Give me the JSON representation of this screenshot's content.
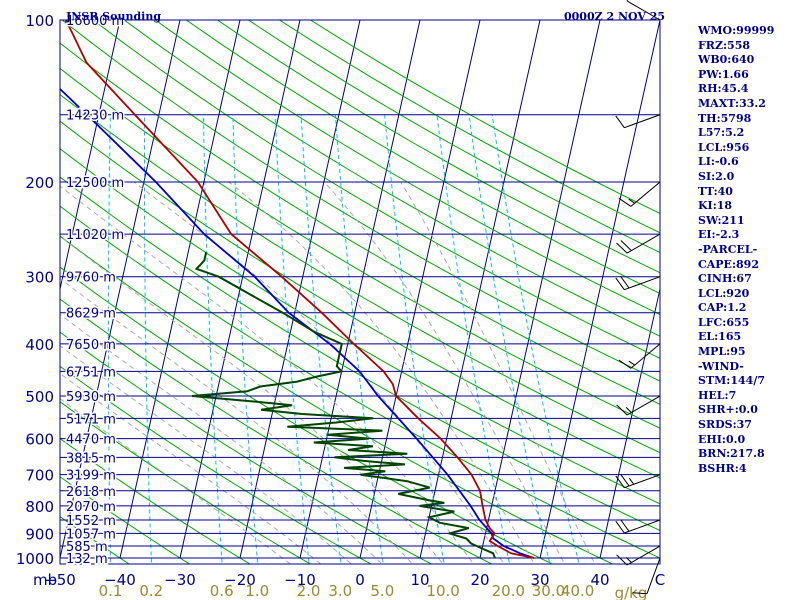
{
  "header": {
    "title": "JNSR Sounding",
    "datetime": "0000Z  2 NOV 25"
  },
  "side_params": [
    "WMO:99999",
    "FRZ:558",
    "WB0:640",
    "PW:1.66",
    "RH:45.4",
    "MAXT:33.2",
    "TH:5798",
    "L57:5.2",
    "LCL:956",
    "LI:-0.6",
    "SI:2.0",
    "TT:40",
    "KI:18",
    "SW:211",
    "EI:-2.3",
    "-PARCEL-",
    "CAPE:892",
    "CINH:67",
    "LCL:920",
    "CAP:1.2",
    "LFC:655",
    "EL:165",
    "MPL:95",
    "-WIND-",
    "STM:144/7",
    "HEL:7",
    "SHR+:0.0",
    "SRDS:37",
    "EHI:0.0",
    "BRN:217.8",
    "BSHR:4"
  ],
  "colors": {
    "isobar": "#00008b",
    "axis_text": "#00008b",
    "isotherm": "#00008b",
    "dry_adiabat": "#00aa00",
    "moist_adiabat": "#aaaaaa",
    "mixing_ratio": "#00bfff",
    "temperature": "#b00000",
    "dewpoint": "#004400",
    "parcel": "#0000cc",
    "wind_barb": "#000000"
  },
  "chart_data": {
    "type": "skew-t",
    "pressure_axis": {
      "unit": "mb",
      "levels": [
        100,
        200,
        300,
        400,
        500,
        600,
        700,
        800,
        900,
        1000
      ],
      "range": [
        1000,
        100
      ],
      "scale": "log"
    },
    "temperature_axis": {
      "ticks": [
        -50,
        -40,
        -30,
        -20,
        -10,
        0,
        10,
        20,
        30,
        40
      ],
      "range": [
        -50,
        50
      ]
    },
    "mixing_ratio_axis": {
      "unit": "g/kg",
      "ticks": [
        "0.1",
        "0.2",
        "0.6",
        "1.0",
        "2.0",
        "3.0",
        "5.0",
        "10.0",
        "20.0",
        "30.0",
        "40.0"
      ]
    },
    "heights": [
      {
        "p": 100,
        "label": "16600 m"
      },
      {
        "p": 150,
        "label": "14230 m"
      },
      {
        "p": 200,
        "label": "12500 m"
      },
      {
        "p": 250,
        "label": "11020 m"
      },
      {
        "p": 300,
        "label": "9760 m"
      },
      {
        "p": 350,
        "label": "8629 m"
      },
      {
        "p": 400,
        "label": "7650 m"
      },
      {
        "p": 450,
        "label": "6751 m"
      },
      {
        "p": 500,
        "label": "5930 m"
      },
      {
        "p": 550,
        "label": "5171 m"
      },
      {
        "p": 600,
        "label": "4470 m"
      },
      {
        "p": 650,
        "label": "3815 m"
      },
      {
        "p": 700,
        "label": "3199 m"
      },
      {
        "p": 750,
        "label": "2618 m"
      },
      {
        "p": 800,
        "label": "2070 m"
      },
      {
        "p": 850,
        "label": "1552 m"
      },
      {
        "p": 900,
        "label": "1057 m"
      },
      {
        "p": 950,
        "label": "585 m"
      },
      {
        "p": 1000,
        "label": "132 m"
      }
    ],
    "temperature": [
      [
        1000,
        29
      ],
      [
        980,
        25
      ],
      [
        950,
        22.5
      ],
      [
        930,
        21
      ],
      [
        900,
        21.5
      ],
      [
        880,
        20.5
      ],
      [
        850,
        19.5
      ],
      [
        800,
        18.5
      ],
      [
        750,
        17.5
      ],
      [
        700,
        15.5
      ],
      [
        650,
        12.5
      ],
      [
        600,
        9
      ],
      [
        550,
        4.5
      ],
      [
        500,
        0
      ],
      [
        475,
        -1
      ],
      [
        450,
        -3
      ],
      [
        400,
        -9
      ],
      [
        350,
        -15.5
      ],
      [
        300,
        -23.5
      ],
      [
        250,
        -33.5
      ],
      [
        200,
        -41
      ],
      [
        150,
        -54
      ],
      [
        120,
        -64
      ],
      [
        100,
        -69
      ]
    ],
    "dewpoint": [
      [
        1000,
        22.5
      ],
      [
        980,
        22
      ],
      [
        960,
        20
      ],
      [
        950,
        19
      ],
      [
        940,
        18
      ],
      [
        920,
        17
      ],
      [
        900,
        14
      ],
      [
        880,
        17
      ],
      [
        860,
        12
      ],
      [
        840,
        10
      ],
      [
        820,
        14
      ],
      [
        800,
        8
      ],
      [
        790,
        12
      ],
      [
        780,
        9
      ],
      [
        760,
        4
      ],
      [
        740,
        9
      ],
      [
        720,
        5
      ],
      [
        700,
        -3
      ],
      [
        690,
        1
      ],
      [
        680,
        -6
      ],
      [
        670,
        4
      ],
      [
        660,
        -3
      ],
      [
        650,
        -8
      ],
      [
        640,
        4
      ],
      [
        630,
        -6
      ],
      [
        620,
        -2
      ],
      [
        610,
        -12
      ],
      [
        600,
        -3
      ],
      [
        590,
        -10
      ],
      [
        580,
        -1
      ],
      [
        570,
        -17
      ],
      [
        560,
        -9
      ],
      [
        550,
        -3
      ],
      [
        540,
        -15
      ],
      [
        530,
        -22
      ],
      [
        520,
        -17
      ],
      [
        510,
        -25
      ],
      [
        500,
        -34
      ],
      [
        490,
        -25
      ],
      [
        480,
        -23
      ],
      [
        470,
        -17
      ],
      [
        460,
        -14
      ],
      [
        450,
        -10
      ],
      [
        440,
        -11
      ],
      [
        420,
        -11
      ],
      [
        400,
        -11
      ],
      [
        380,
        -16
      ],
      [
        350,
        -22
      ],
      [
        320,
        -29
      ],
      [
        300,
        -34
      ],
      [
        290,
        -38
      ],
      [
        280,
        -37
      ],
      [
        270,
        -37
      ]
    ],
    "parcel": [
      [
        1000,
        29
      ],
      [
        980,
        26.5
      ],
      [
        950,
        23.5
      ],
      [
        920,
        21.5
      ],
      [
        900,
        21
      ],
      [
        850,
        18.5
      ],
      [
        800,
        16.5
      ],
      [
        700,
        11.5
      ],
      [
        600,
        5
      ],
      [
        500,
        -3
      ],
      [
        450,
        -7
      ],
      [
        400,
        -13
      ],
      [
        350,
        -21
      ],
      [
        300,
        -28
      ],
      [
        250,
        -38
      ],
      [
        200,
        -48
      ],
      [
        150,
        -62
      ],
      [
        120,
        -73
      ]
    ],
    "winds": [
      [
        1000,
        200,
        10
      ],
      [
        950,
        240,
        15
      ],
      [
        850,
        250,
        20
      ],
      [
        700,
        250,
        25
      ],
      [
        500,
        240,
        15
      ],
      [
        400,
        230,
        15
      ],
      [
        300,
        250,
        20
      ],
      [
        250,
        240,
        20
      ],
      [
        200,
        230,
        15
      ],
      [
        150,
        250,
        10
      ],
      [
        100,
        300,
        10
      ]
    ]
  }
}
